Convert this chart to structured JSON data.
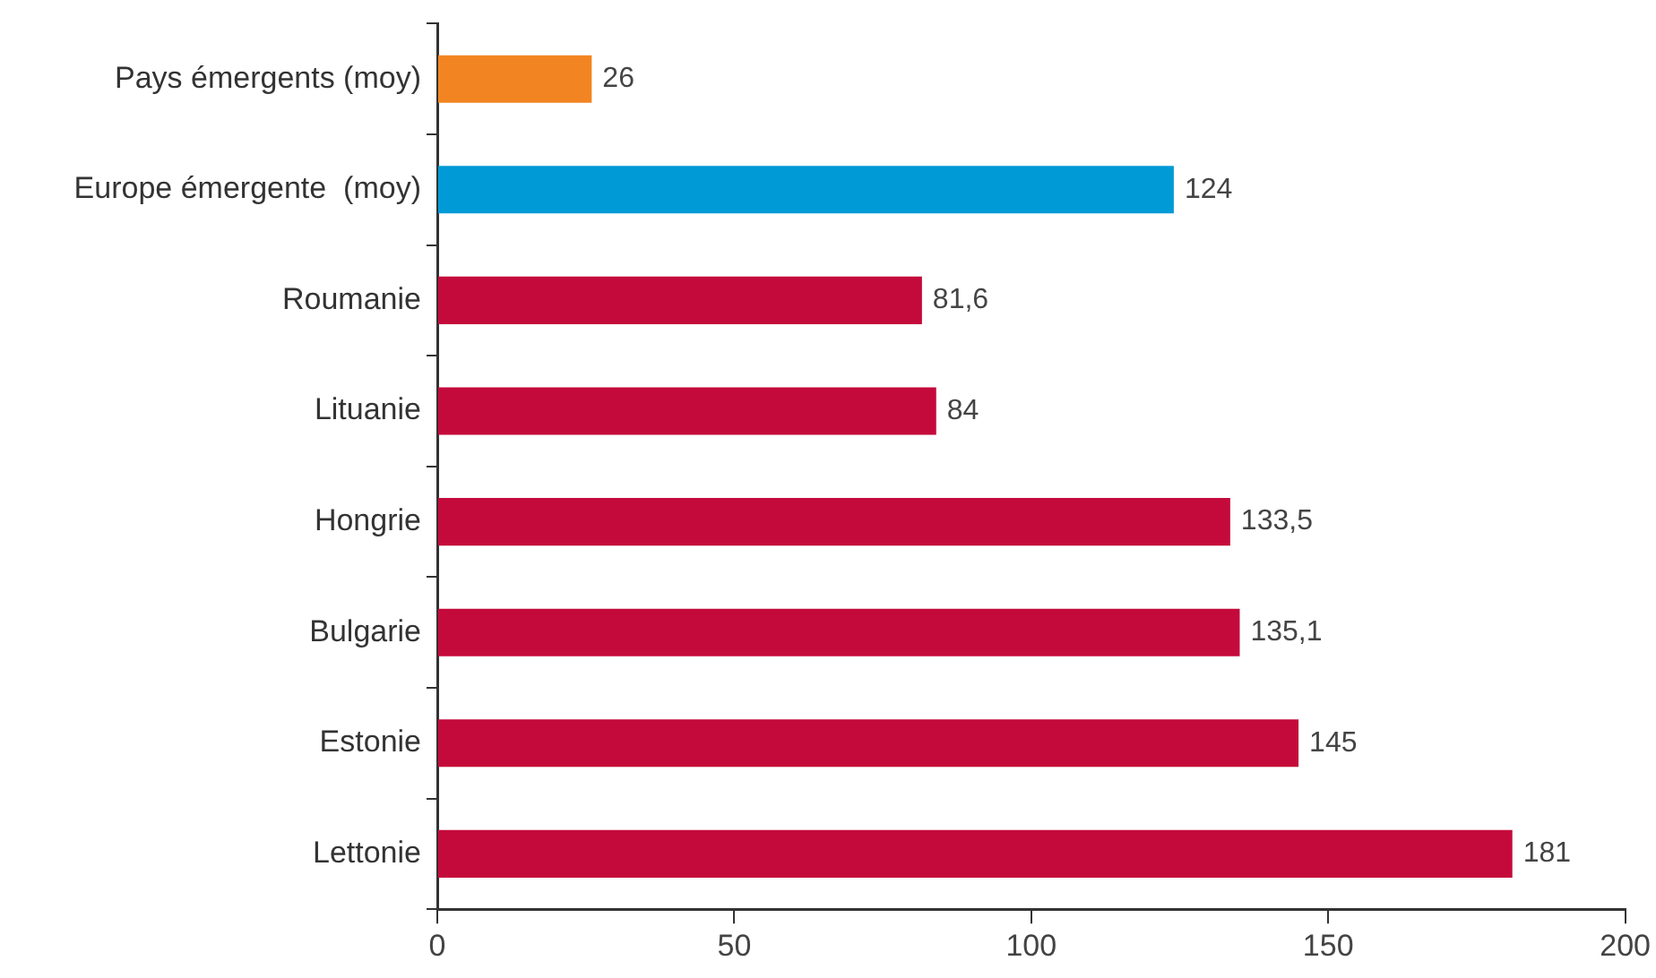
{
  "chart_data": {
    "type": "bar",
    "orientation": "horizontal",
    "categories": [
      "Pays émergents (moy)",
      "Europe émergente  (moy)",
      "Roumanie",
      "Lituanie",
      "Hongrie",
      "Bulgarie",
      "Estonie",
      "Lettonie"
    ],
    "values": [
      26,
      124,
      81.6,
      84,
      133.5,
      135.1,
      145,
      181
    ],
    "colors": [
      "#f28522",
      "#009ad6",
      "#c40a3b",
      "#c40a3b",
      "#c40a3b",
      "#c40a3b",
      "#c40a3b",
      "#c40a3b"
    ],
    "value_labels": [
      "26",
      "124",
      "81,6",
      "84",
      "133,5",
      "135,1",
      "145",
      "181"
    ],
    "xlim": [
      0,
      200
    ],
    "xticks": [
      0,
      50,
      100,
      150,
      200
    ],
    "grid": false,
    "legend": false
  }
}
